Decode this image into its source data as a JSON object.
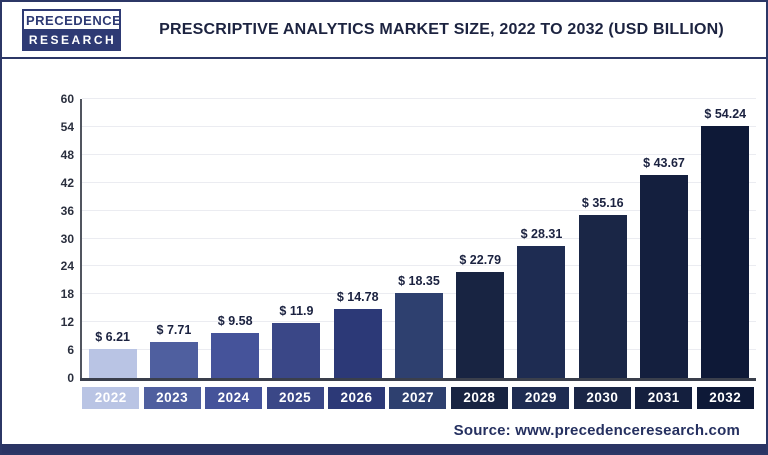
{
  "header": {
    "logo": {
      "line1": "PRECEDENCE",
      "line2": "RESEARCH"
    },
    "title": "PRESCRIPTIVE ANALYTICS MARKET SIZE, 2022 TO 2032 (USD BILLION)"
  },
  "chart_data": {
    "type": "bar",
    "title": "PRESCRIPTIVE ANALYTICS MARKET SIZE, 2022 TO 2032 (USD BILLION)",
    "categories": [
      "2022",
      "2023",
      "2024",
      "2025",
      "2026",
      "2027",
      "2028",
      "2029",
      "2030",
      "2031",
      "2032"
    ],
    "values": [
      6.21,
      7.71,
      9.58,
      11.9,
      14.78,
      18.35,
      22.79,
      28.31,
      35.16,
      43.67,
      54.24
    ],
    "value_labels": [
      "$ 6.21",
      "$ 7.71",
      "$ 9.58",
      "$ 11.9",
      "$ 14.78",
      "$ 18.35",
      "$ 22.79",
      "$ 28.31",
      "$ 35.16",
      "$ 43.67",
      "$ 54.24"
    ],
    "xlabel": "",
    "ylabel": "",
    "ylim": [
      0,
      60
    ],
    "yticks": [
      0,
      6,
      12,
      18,
      24,
      30,
      36,
      42,
      48,
      54,
      60
    ],
    "grid": "horizontal",
    "legend_position": "none",
    "bar_colors": [
      "#b9c4e4",
      "#4f5f9f",
      "#45539a",
      "#3a4787",
      "#2c3977",
      "#2e406f",
      "#182442",
      "#1e2c52",
      "#1a2646",
      "#141f3e",
      "#0e1937"
    ],
    "axis_color": "#3a3f4c",
    "gridline_color": "#ebecf1"
  },
  "footer": {
    "source_label": "Source: www.precedenceresearch.com"
  }
}
